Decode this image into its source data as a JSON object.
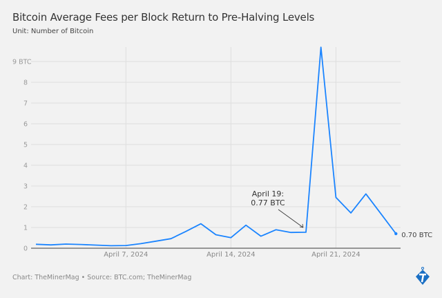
{
  "title": "Bitcoin Average Fees per Block Return to Pre-Halving Levels",
  "subtitle": "Unit: Number of Bitcoin",
  "footer": "Chart: TheMinerMag • Source: BTC.com; TheMinerMag",
  "colors": {
    "line": "#1a84ff",
    "background": "#f2f2f2",
    "logo": "#1a6fc4"
  },
  "chart_data": {
    "type": "line",
    "title": "Bitcoin Average Fees per Block Return to Pre-Halving Levels",
    "subtitle": "Unit: Number of Bitcoin",
    "x": [
      "2024-04-01",
      "2024-04-02",
      "2024-04-03",
      "2024-04-04",
      "2024-04-05",
      "2024-04-06",
      "2024-04-07",
      "2024-04-08",
      "2024-04-09",
      "2024-04-10",
      "2024-04-11",
      "2024-04-12",
      "2024-04-13",
      "2024-04-14",
      "2024-04-15",
      "2024-04-16",
      "2024-04-17",
      "2024-04-18",
      "2024-04-19",
      "2024-04-20",
      "2024-04-21",
      "2024-04-22",
      "2024-04-23",
      "2024-04-24",
      "2024-04-25"
    ],
    "series": [
      {
        "values": [
          0.19,
          0.16,
          0.2,
          0.18,
          0.15,
          0.12,
          0.13,
          0.22,
          0.34,
          0.46,
          0.81,
          1.18,
          0.65,
          0.51,
          1.11,
          0.58,
          0.89,
          0.76,
          0.77,
          9.69,
          2.45,
          1.7,
          2.62,
          1.66,
          0.7
        ]
      }
    ],
    "ylim": [
      0,
      9.7
    ],
    "yticks": [
      0,
      1,
      2,
      3,
      4,
      5,
      6,
      7,
      8,
      9
    ],
    "ytick_labels": [
      "0",
      "1",
      "2",
      "3",
      "4",
      "5",
      "6",
      "7",
      "8",
      "9 BTC"
    ],
    "xticks": [
      "2024-04-07",
      "2024-04-14",
      "2024-04-21"
    ],
    "xtick_labels": [
      "April 7, 2024",
      "April 14, 2024",
      "April 21, 2024"
    ],
    "grid": true,
    "annotations": [
      {
        "x": "2024-04-19",
        "y": 0.77,
        "text_lines": [
          "April 19:",
          "0.77 BTC"
        ]
      },
      {
        "x": "2024-04-25",
        "y": 0.7,
        "text": "0.70 BTC"
      }
    ]
  }
}
